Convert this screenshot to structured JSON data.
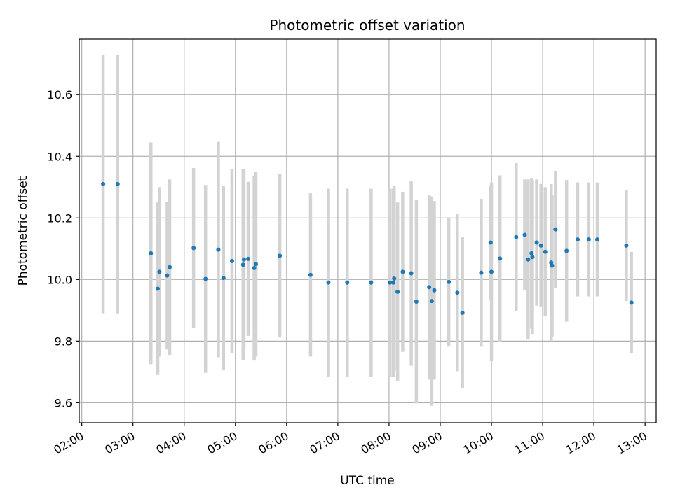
{
  "chart_data": {
    "type": "scatter",
    "title": "Photometric offset variation",
    "xlabel": "UTC time",
    "ylabel": "Photometric offset",
    "x_ticks": [
      "02:00",
      "03:00",
      "04:00",
      "05:00",
      "06:00",
      "07:00",
      "08:00",
      "09:00",
      "10:00",
      "11:00",
      "12:00",
      "13:00"
    ],
    "y_ticks": [
      "9.6",
      "9.8",
      "10.0",
      "10.2",
      "10.4",
      "10.6"
    ],
    "xlim": [
      "01:57",
      "13:13"
    ],
    "ylim": [
      9.535,
      10.78
    ],
    "grid": true,
    "colors": {
      "point": "#1f77b4",
      "errorbar": "#d3d3d3",
      "grid": "#b0b0b0"
    },
    "series": [
      {
        "x": [
          "02:25",
          "02:42",
          "03:21",
          "03:29",
          "03:31",
          "03:40",
          "03:43",
          "04:11",
          "04:25",
          "04:40",
          "04:46",
          "04:56",
          "05:09",
          "05:10",
          "05:15",
          "05:22",
          "05:24",
          "05:52",
          "06:28",
          "06:49",
          "07:11",
          "07:39",
          "08:01",
          "08:05",
          "08:06",
          "08:10",
          "08:16",
          "08:26",
          "08:32",
          "08:47",
          "08:50",
          "08:53",
          "09:10",
          "09:20",
          "09:26",
          "09:48",
          "09:59",
          "10:00",
          "10:10",
          "10:29",
          "10:39",
          "10:43",
          "10:47",
          "10:48",
          "10:53",
          "10:58",
          "11:03",
          "11:10",
          "11:11",
          "11:15",
          "11:28",
          "11:41",
          "11:54",
          "12:04",
          "12:38",
          "12:44"
        ],
        "y": [
          10.31,
          10.31,
          10.085,
          9.97,
          10.025,
          10.013,
          10.04,
          10.102,
          10.002,
          10.097,
          10.005,
          10.06,
          10.048,
          10.065,
          10.067,
          10.037,
          10.05,
          10.077,
          10.015,
          9.99,
          9.99,
          9.99,
          9.99,
          9.99,
          10.003,
          9.96,
          10.025,
          10.02,
          9.928,
          9.975,
          9.93,
          9.965,
          9.992,
          9.957,
          9.892,
          10.022,
          10.12,
          10.025,
          10.068,
          10.138,
          10.145,
          10.065,
          10.085,
          10.073,
          10.12,
          10.11,
          10.09,
          10.055,
          10.045,
          10.163,
          10.093,
          10.13,
          10.13,
          10.13,
          10.11,
          9.925
        ],
        "yerr": [
          0.42,
          0.42,
          0.36,
          0.28,
          0.275,
          0.24,
          0.285,
          0.26,
          0.305,
          0.35,
          0.3,
          0.3,
          0.31,
          0.29,
          0.25,
          0.3,
          0.3,
          0.265,
          0.265,
          0.305,
          0.305,
          0.305,
          0.305,
          0.305,
          0.3,
          0.29,
          0.26,
          0.3,
          0.33,
          0.3,
          0.34,
          0.29,
          0.21,
          0.255,
          0.245,
          0.24,
          0.185,
          0.29,
          0.27,
          0.24,
          0.18,
          0.26,
          0.245,
          0.25,
          0.205,
          0.2,
          0.21,
          0.255,
          0.23,
          0.19,
          0.23,
          0.185,
          0.185,
          0.185,
          0.18,
          0.165
        ]
      }
    ]
  }
}
